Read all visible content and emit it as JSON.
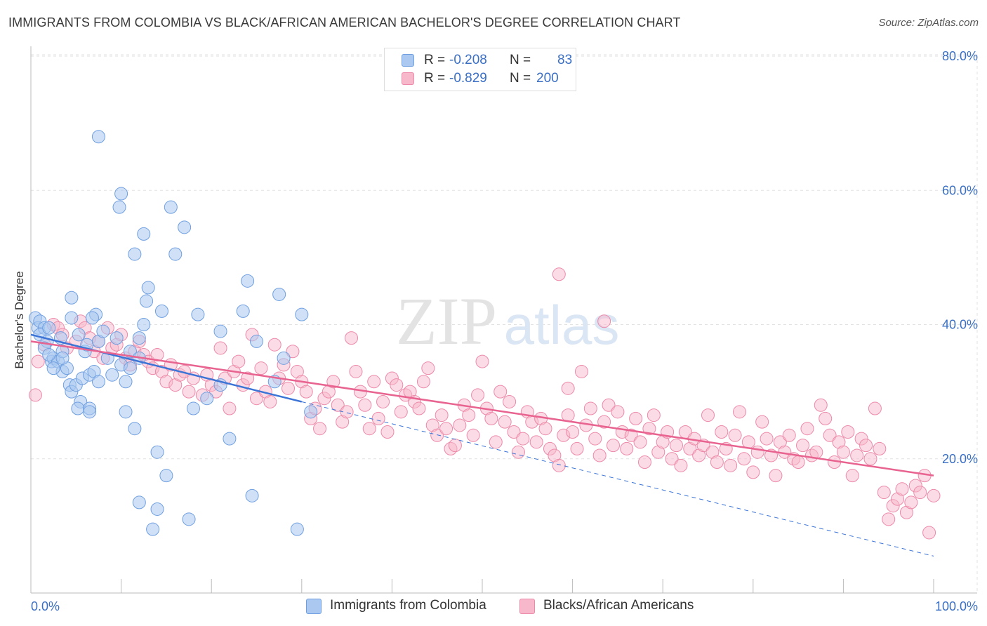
{
  "title": "IMMIGRANTS FROM COLOMBIA VS BLACK/AFRICAN AMERICAN BACHELOR'S DEGREE CORRELATION CHART",
  "source": "Source: ZipAtlas.com",
  "watermark": {
    "zip": "ZIP",
    "atlas": "atlas"
  },
  "colors": {
    "blue_fill": "#aac8f0",
    "blue_stroke": "#6f9fe0",
    "blue_line": "#3b74d6",
    "pink_fill": "#f7b8cb",
    "pink_stroke": "#ec8aa9",
    "pink_line": "#e8638f",
    "tick_text": "#3a6fc4",
    "grid": "#e2e2e2"
  },
  "legend": {
    "rows": [
      {
        "r_label": "R = ",
        "r_value": "-0.208",
        "n_label": "N = ",
        "n_value": "83"
      },
      {
        "r_label": "R = ",
        "r_value": "-0.829",
        "n_label": "N = ",
        "n_value": "200"
      }
    ]
  },
  "chart_data": {
    "type": "scatter",
    "title": "IMMIGRANTS FROM COLOMBIA VS BLACK/AFRICAN AMERICAN BACHELOR'S DEGREE CORRELATION CHART",
    "xlabel": "",
    "ylabel": "Bachelor's Degree",
    "xlim": [
      0,
      100
    ],
    "ylim": [
      0,
      80
    ],
    "y_ticks": [
      20,
      40,
      60,
      80
    ],
    "y_tick_labels": [
      "20.0%",
      "40.0%",
      "60.0%",
      "80.0%"
    ],
    "x_tick_labels": [
      "0.0%",
      "100.0%"
    ],
    "grid": true,
    "series": [
      {
        "name": "Immigrants from Colombia",
        "color": "blue",
        "trend": {
          "x0": 0,
          "y0": 38.5,
          "x1": 30,
          "y1": 28.5,
          "dashed_to_x": 100,
          "dashed_to_y": 5.5
        },
        "points": [
          [
            0.5,
            41
          ],
          [
            0.8,
            39.5
          ],
          [
            1.0,
            40.5
          ],
          [
            1.5,
            39.5
          ],
          [
            1.0,
            38.5
          ],
          [
            1.8,
            37.5
          ],
          [
            1.5,
            36.5
          ],
          [
            2.0,
            39.5
          ],
          [
            2.3,
            34.5
          ],
          [
            2.5,
            35.0
          ],
          [
            3.0,
            34.5
          ],
          [
            3.5,
            36.0
          ],
          [
            3.3,
            38.0
          ],
          [
            2.0,
            35.5
          ],
          [
            3.5,
            33.0
          ],
          [
            4.0,
            33.5
          ],
          [
            4.3,
            31.0
          ],
          [
            4.5,
            30.0
          ],
          [
            5.0,
            31.0
          ],
          [
            5.5,
            28.5
          ],
          [
            5.2,
            27.5
          ],
          [
            5.7,
            32.0
          ],
          [
            6.0,
            36.0
          ],
          [
            5.3,
            38.5
          ],
          [
            6.2,
            37.0
          ],
          [
            6.5,
            32.5
          ],
          [
            7.0,
            33.0
          ],
          [
            7.2,
            41.5
          ],
          [
            6.8,
            41.0
          ],
          [
            4.5,
            41.0
          ],
          [
            4.5,
            44.0
          ],
          [
            7.5,
            31.5
          ],
          [
            7.5,
            37.5
          ],
          [
            8.0,
            39.0
          ],
          [
            8.5,
            35.0
          ],
          [
            9.0,
            32.5
          ],
          [
            9.5,
            38.0
          ],
          [
            10.0,
            34.0
          ],
          [
            10.5,
            31.5
          ],
          [
            11.0,
            33.5
          ],
          [
            11.0,
            36.0
          ],
          [
            12.0,
            38.0
          ],
          [
            12.5,
            40.0
          ],
          [
            10.0,
            59.5
          ],
          [
            9.8,
            57.5
          ],
          [
            11.5,
            50.5
          ],
          [
            12.5,
            53.5
          ],
          [
            13.0,
            45.5
          ],
          [
            12.8,
            43.5
          ],
          [
            12.0,
            35.0
          ],
          [
            14.5,
            42.0
          ],
          [
            15.5,
            57.5
          ],
          [
            16.0,
            50.5
          ],
          [
            17.0,
            54.5
          ],
          [
            14.0,
            21.0
          ],
          [
            15.0,
            17.5
          ],
          [
            18.5,
            41.5
          ],
          [
            19.5,
            29.0
          ],
          [
            21.0,
            31.0
          ],
          [
            21.0,
            39.0
          ],
          [
            23.5,
            42.0
          ],
          [
            24.0,
            46.5
          ],
          [
            25.0,
            37.5
          ],
          [
            27.5,
            44.5
          ],
          [
            28.0,
            35.0
          ],
          [
            27.0,
            31.5
          ],
          [
            22.0,
            23.0
          ],
          [
            18.0,
            27.5
          ],
          [
            17.5,
            11.0
          ],
          [
            13.5,
            9.5
          ],
          [
            12.0,
            13.5
          ],
          [
            11.5,
            24.5
          ],
          [
            10.5,
            27.0
          ],
          [
            7.5,
            68.0
          ],
          [
            3.5,
            35.0
          ],
          [
            2.5,
            33.5
          ],
          [
            6.5,
            27.5
          ],
          [
            6.5,
            27.0
          ],
          [
            14.0,
            12.5
          ],
          [
            24.5,
            14.5
          ],
          [
            29.5,
            9.5
          ],
          [
            31.0,
            27.0
          ],
          [
            30.0,
            41.5
          ]
        ]
      },
      {
        "name": "Blacks/African Americans",
        "color": "pink",
        "trend": {
          "x0": 0,
          "y0": 37.5,
          "x1": 100,
          "y1": 17.5
        },
        "points": [
          [
            0.5,
            29.5
          ],
          [
            0.8,
            34.5
          ],
          [
            1.5,
            37.0
          ],
          [
            2.5,
            40.0
          ],
          [
            3.0,
            39.5
          ],
          [
            3.5,
            38.5
          ],
          [
            4.0,
            36.5
          ],
          [
            5.0,
            37.5
          ],
          [
            5.5,
            40.5
          ],
          [
            6.0,
            39.5
          ],
          [
            6.5,
            38.0
          ],
          [
            7.0,
            36.0
          ],
          [
            7.5,
            37.5
          ],
          [
            8.0,
            35.0
          ],
          [
            8.5,
            39.5
          ],
          [
            9.0,
            36.5
          ],
          [
            9.5,
            37.0
          ],
          [
            10.0,
            38.5
          ],
          [
            10.5,
            35.0
          ],
          [
            11.0,
            34.0
          ],
          [
            11.5,
            36.0
          ],
          [
            12.0,
            37.5
          ],
          [
            12.5,
            35.5
          ],
          [
            13.0,
            34.5
          ],
          [
            13.5,
            33.5
          ],
          [
            14.0,
            35.5
          ],
          [
            14.5,
            33.0
          ],
          [
            15.0,
            31.5
          ],
          [
            15.5,
            34.0
          ],
          [
            16.0,
            31.0
          ],
          [
            16.5,
            32.5
          ],
          [
            17.0,
            33.0
          ],
          [
            17.5,
            30.0
          ],
          [
            18.0,
            32.0
          ],
          [
            19.0,
            29.5
          ],
          [
            19.5,
            32.5
          ],
          [
            20.0,
            31.0
          ],
          [
            20.5,
            30.0
          ],
          [
            21.0,
            36.5
          ],
          [
            21.5,
            32.0
          ],
          [
            22.0,
            27.5
          ],
          [
            22.5,
            33.0
          ],
          [
            23.0,
            34.5
          ],
          [
            23.5,
            31.0
          ],
          [
            24.0,
            32.0
          ],
          [
            24.5,
            38.5
          ],
          [
            25.0,
            29.0
          ],
          [
            25.5,
            33.5
          ],
          [
            26.0,
            30.0
          ],
          [
            26.5,
            28.5
          ],
          [
            27.0,
            37.0
          ],
          [
            27.5,
            32.0
          ],
          [
            28.0,
            34.0
          ],
          [
            28.5,
            30.5
          ],
          [
            29.0,
            36.0
          ],
          [
            29.5,
            33.0
          ],
          [
            30.0,
            31.5
          ],
          [
            30.5,
            30.0
          ],
          [
            31.0,
            26.0
          ],
          [
            31.5,
            27.5
          ],
          [
            32.0,
            24.5
          ],
          [
            32.5,
            29.0
          ],
          [
            33.0,
            30.0
          ],
          [
            33.5,
            31.5
          ],
          [
            34.0,
            28.0
          ],
          [
            34.5,
            25.5
          ],
          [
            35.0,
            27.0
          ],
          [
            35.5,
            38.0
          ],
          [
            36.0,
            33.0
          ],
          [
            36.5,
            30.0
          ],
          [
            37.0,
            28.0
          ],
          [
            37.5,
            24.5
          ],
          [
            38.0,
            31.5
          ],
          [
            38.5,
            26.0
          ],
          [
            39.0,
            28.5
          ],
          [
            39.5,
            24.0
          ],
          [
            40.0,
            32.0
          ],
          [
            40.5,
            31.0
          ],
          [
            41.0,
            27.0
          ],
          [
            41.5,
            29.5
          ],
          [
            42.0,
            30.0
          ],
          [
            42.5,
            28.5
          ],
          [
            43.0,
            27.5
          ],
          [
            43.5,
            31.5
          ],
          [
            44.0,
            33.5
          ],
          [
            44.5,
            25.0
          ],
          [
            45.0,
            23.5
          ],
          [
            45.5,
            26.5
          ],
          [
            46.0,
            24.5
          ],
          [
            46.5,
            21.5
          ],
          [
            47.0,
            22.0
          ],
          [
            47.5,
            25.0
          ],
          [
            48.0,
            28.0
          ],
          [
            48.5,
            26.5
          ],
          [
            49.0,
            23.5
          ],
          [
            49.5,
            29.5
          ],
          [
            50.0,
            34.5
          ],
          [
            50.5,
            27.5
          ],
          [
            51.0,
            26.0
          ],
          [
            51.5,
            22.5
          ],
          [
            52.0,
            30.0
          ],
          [
            52.5,
            25.5
          ],
          [
            53.0,
            28.5
          ],
          [
            53.5,
            24.0
          ],
          [
            54.0,
            21.0
          ],
          [
            54.5,
            23.0
          ],
          [
            55.0,
            27.0
          ],
          [
            55.5,
            25.5
          ],
          [
            56.0,
            22.5
          ],
          [
            56.5,
            26.0
          ],
          [
            57.0,
            24.5
          ],
          [
            57.5,
            21.5
          ],
          [
            58.0,
            20.5
          ],
          [
            58.5,
            19.0
          ],
          [
            59.0,
            23.5
          ],
          [
            59.5,
            26.5
          ],
          [
            60.0,
            24.0
          ],
          [
            60.5,
            21.5
          ],
          [
            61.0,
            33.0
          ],
          [
            61.5,
            25.0
          ],
          [
            62.0,
            27.5
          ],
          [
            62.5,
            23.0
          ],
          [
            63.0,
            20.5
          ],
          [
            63.5,
            25.5
          ],
          [
            64.0,
            28.0
          ],
          [
            64.5,
            22.0
          ],
          [
            65.0,
            27.0
          ],
          [
            65.5,
            24.0
          ],
          [
            66.0,
            21.5
          ],
          [
            66.5,
            23.5
          ],
          [
            67.0,
            26.0
          ],
          [
            67.5,
            22.5
          ],
          [
            68.0,
            19.5
          ],
          [
            68.5,
            24.5
          ],
          [
            69.0,
            26.5
          ],
          [
            69.5,
            21.0
          ],
          [
            70.0,
            22.5
          ],
          [
            70.5,
            24.0
          ],
          [
            71.0,
            20.0
          ],
          [
            71.5,
            22.0
          ],
          [
            72.0,
            19.0
          ],
          [
            72.5,
            24.0
          ],
          [
            73.0,
            21.5
          ],
          [
            73.5,
            23.0
          ],
          [
            74.0,
            20.5
          ],
          [
            74.5,
            22.0
          ],
          [
            75.0,
            26.5
          ],
          [
            75.5,
            21.0
          ],
          [
            76.0,
            19.5
          ],
          [
            76.5,
            24.0
          ],
          [
            77.0,
            21.5
          ],
          [
            77.5,
            19.0
          ],
          [
            78.0,
            23.5
          ],
          [
            78.5,
            27.0
          ],
          [
            79.0,
            20.0
          ],
          [
            79.5,
            22.5
          ],
          [
            80.0,
            18.0
          ],
          [
            80.5,
            21.0
          ],
          [
            81.0,
            25.5
          ],
          [
            81.5,
            23.0
          ],
          [
            82.0,
            20.5
          ],
          [
            82.5,
            17.5
          ],
          [
            83.0,
            22.5
          ],
          [
            83.5,
            21.0
          ],
          [
            84.0,
            23.5
          ],
          [
            84.5,
            20.0
          ],
          [
            85.0,
            19.5
          ],
          [
            85.5,
            22.0
          ],
          [
            86.0,
            24.5
          ],
          [
            86.5,
            20.5
          ],
          [
            87.0,
            21.0
          ],
          [
            87.5,
            28.0
          ],
          [
            88.0,
            26.0
          ],
          [
            88.5,
            23.5
          ],
          [
            89.0,
            19.5
          ],
          [
            89.5,
            22.5
          ],
          [
            90.0,
            21.0
          ],
          [
            90.5,
            24.0
          ],
          [
            91.0,
            17.5
          ],
          [
            91.5,
            20.5
          ],
          [
            92.0,
            23.0
          ],
          [
            92.5,
            22.0
          ],
          [
            93.0,
            20.0
          ],
          [
            93.5,
            27.5
          ],
          [
            94.0,
            21.5
          ],
          [
            94.5,
            15.0
          ],
          [
            95.0,
            11.0
          ],
          [
            95.5,
            13.0
          ],
          [
            96.0,
            14.0
          ],
          [
            96.5,
            15.5
          ],
          [
            97.0,
            12.0
          ],
          [
            97.5,
            13.5
          ],
          [
            98.0,
            16.0
          ],
          [
            98.5,
            15.0
          ],
          [
            99.0,
            17.5
          ],
          [
            99.5,
            9.0
          ],
          [
            100.0,
            14.5
          ],
          [
            58.5,
            47.5
          ],
          [
            63.5,
            40.5
          ],
          [
            59.5,
            30.5
          ]
        ]
      }
    ]
  },
  "bottom_legend": {
    "items": [
      {
        "label": "Immigrants from Colombia"
      },
      {
        "label": "Blacks/African Americans"
      }
    ]
  }
}
